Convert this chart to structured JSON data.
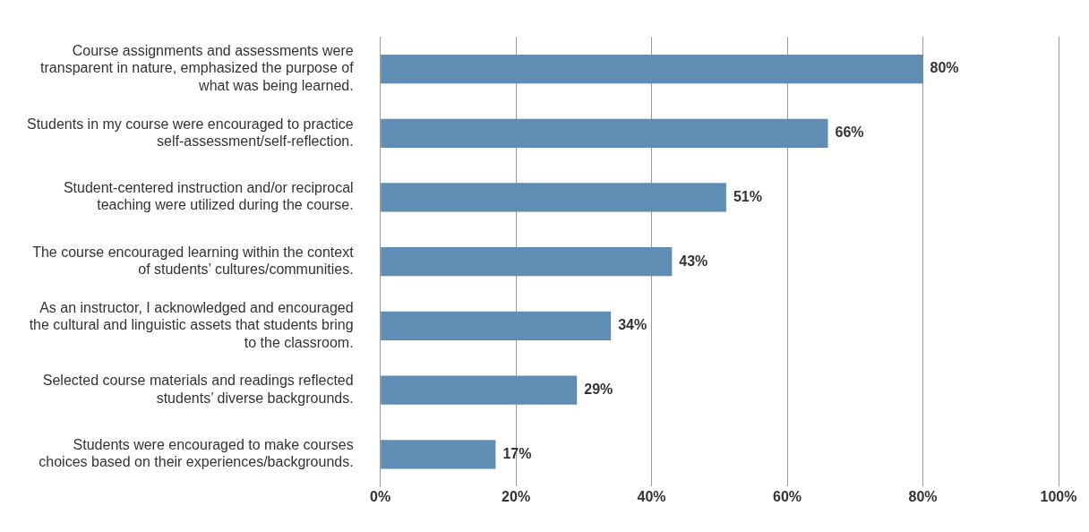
{
  "chart_data": {
    "type": "bar",
    "orientation": "horizontal",
    "categories": [
      "Course assignments and assessments were transparent in nature, emphasized the purpose of what was being learned.",
      "Students in my course were encouraged to practice self-assessment/self-reflection.",
      "Student-centered instruction and/or reciprocal teaching were utilized during the course.",
      "The course encouraged learning within the context of students’ cultures/communities.",
      "As an instructor, I acknowledged and encouraged the cultural and linguistic assets that students bring to the classroom.",
      "Selected course materials and readings reflected students’ diverse backgrounds.",
      "Students were encouraged to make courses choices based on their experiences/backgrounds."
    ],
    "values": [
      80,
      66,
      51,
      43,
      34,
      29,
      17
    ],
    "value_labels": [
      "80%",
      "66%",
      "51%",
      "43%",
      "34%",
      "29%",
      "17%"
    ],
    "color": "#5f8db3",
    "xlim": [
      0,
      100
    ],
    "xticks": [
      {
        "value": 0,
        "label": "0%"
      },
      {
        "value": 20,
        "label": "20%"
      },
      {
        "value": 40,
        "label": "40%"
      },
      {
        "value": 60,
        "label": "60%"
      },
      {
        "value": 80,
        "label": "80%"
      },
      {
        "value": 100,
        "label": "100%"
      }
    ],
    "grid": "x",
    "legend": false
  }
}
